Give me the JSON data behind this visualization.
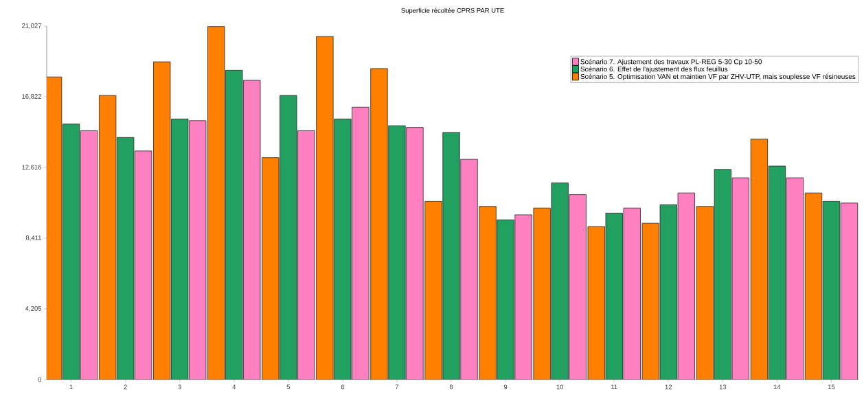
{
  "chart_data": {
    "type": "bar",
    "title": "Superficie récoltée CPRS PAR UTE",
    "categories": [
      "1",
      "2",
      "3",
      "4",
      "5",
      "6",
      "7",
      "8",
      "9",
      "10",
      "11",
      "12",
      "13",
      "14",
      "15"
    ],
    "series": [
      {
        "name": "Scénario 5. Optimisation VAN et maintien VF par ZHV-UTP, mais souplesse VF résineuses",
        "color": "#ff8000",
        "values": [
          18000,
          16900,
          18900,
          21000,
          13200,
          20400,
          18500,
          10600,
          10300,
          10200,
          9100,
          9300,
          10300,
          14300,
          11100
        ]
      },
      {
        "name": "Scénario 6. Effet de l'ajustement des flux feuillus",
        "color": "#21a060",
        "values": [
          15200,
          14400,
          15500,
          18400,
          16900,
          15500,
          15100,
          14700,
          9500,
          11700,
          9900,
          10400,
          12500,
          12700,
          10600
        ]
      },
      {
        "name": "Scénario 7. Ajustement des travaux PL-REG 5-30 Cp 10-50",
        "color": "#ff80c0",
        "values": [
          14800,
          13600,
          15400,
          17800,
          14800,
          16200,
          15000,
          13100,
          9800,
          11000,
          10200,
          11100,
          12000,
          12000,
          10500
        ]
      }
    ],
    "ylim": [
      0,
      21027
    ],
    "yticks": [
      0,
      {
        "value": 4205,
        "label": "4,205"
      },
      {
        "value": 8411,
        "label": "8,411"
      },
      {
        "value": 12616,
        "label": "12,616"
      },
      {
        "value": 16822,
        "label": "16,822"
      },
      {
        "value": 21027,
        "label": "21,027"
      }
    ],
    "grid": false,
    "legend": "top right"
  }
}
